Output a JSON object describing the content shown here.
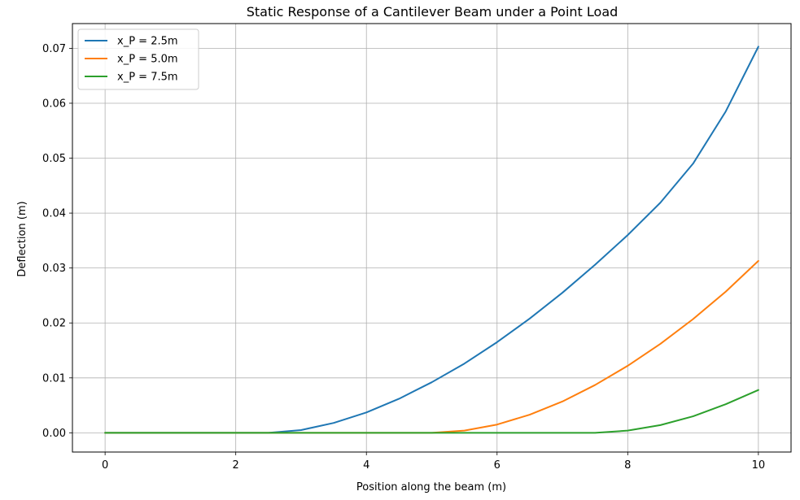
{
  "chart_data": {
    "type": "line",
    "title": "Static Response of a Cantilever Beam under a Point Load",
    "xlabel": "Position along the beam (m)",
    "ylabel": "Deflection (m)",
    "xlim": [
      -0.5,
      10.5
    ],
    "ylim": [
      -0.0035,
      0.0745
    ],
    "xticks": [
      0,
      2,
      4,
      6,
      8,
      10
    ],
    "xtick_labels": [
      "0",
      "2",
      "4",
      "6",
      "8",
      "10"
    ],
    "yticks": [
      0.0,
      0.01,
      0.02,
      0.03,
      0.04,
      0.05,
      0.06,
      0.07
    ],
    "ytick_labels": [
      "0.00",
      "0.01",
      "0.02",
      "0.03",
      "0.04",
      "0.05",
      "0.06",
      "0.07"
    ],
    "grid": true,
    "legend_position": "top-left",
    "series": [
      {
        "name": "x_P = 2.5m",
        "color": "#1f77b4",
        "x": [
          0,
          1,
          2,
          2.5,
          3,
          3.5,
          4,
          4.5,
          5,
          5.5,
          6,
          6.5,
          7,
          7.5,
          8,
          8.5,
          9,
          9.5,
          10
        ],
        "y": [
          0,
          0,
          0,
          0,
          0.0005,
          0.0018,
          0.0037,
          0.0062,
          0.0092,
          0.0126,
          0.0165,
          0.0208,
          0.0255,
          0.0306,
          0.036,
          0.0419,
          0.049,
          0.0585,
          0.0703
        ]
      },
      {
        "name": "x_P = 5.0m",
        "color": "#ff7f0e",
        "x": [
          0,
          1,
          2,
          3,
          4,
          5,
          5.5,
          6,
          6.5,
          7,
          7.5,
          8,
          8.5,
          9,
          9.5,
          10
        ],
        "y": [
          0,
          0,
          0,
          0,
          0,
          0,
          0.0004,
          0.0015,
          0.0033,
          0.0057,
          0.0087,
          0.0122,
          0.0162,
          0.0207,
          0.0257,
          0.0313
        ]
      },
      {
        "name": "x_P = 7.5m",
        "color": "#2ca02c",
        "x": [
          0,
          1,
          2,
          3,
          4,
          5,
          6,
          7,
          7.5,
          8,
          8.5,
          9,
          9.5,
          10
        ],
        "y": [
          0,
          0,
          0,
          0,
          0,
          0,
          0,
          0,
          0,
          0.0004,
          0.0014,
          0.003,
          0.0052,
          0.0078
        ]
      }
    ]
  }
}
